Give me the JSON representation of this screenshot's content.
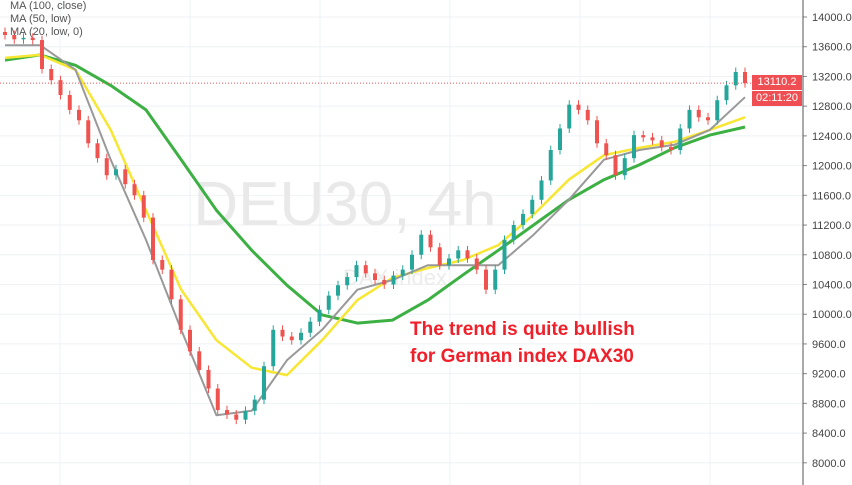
{
  "chart_data": {
    "type": "candlestick",
    "symbol_watermark": "DEU30, 4h",
    "sub_watermark": "DAX index",
    "ylim": [
      8000,
      14200
    ],
    "yticks": [
      8000,
      8400,
      8800,
      9200,
      9600,
      10000,
      10400,
      10800,
      11200,
      11600,
      12000,
      12400,
      12800,
      13200,
      13600,
      14000
    ],
    "ytick_labels": [
      "8000.0",
      "8400.0",
      "8800.0",
      "9200.0",
      "9600.0",
      "10000.0",
      "10400.0",
      "10800.0",
      "11200.0",
      "11600.0",
      "12000.0",
      "12400.0",
      "12800.0",
      "13200.0",
      "13600.0",
      "14000.0"
    ],
    "grid": true,
    "closes": [
      13758,
      13700,
      13720,
      13690,
      13300,
      13150,
      12950,
      12750,
      12610,
      12300,
      12100,
      11870,
      11950,
      11750,
      11600,
      11300,
      10730,
      10600,
      10200,
      9790,
      9500,
      9250,
      9000,
      8710,
      8650,
      8580,
      8700,
      8850,
      9300,
      9790,
      9700,
      9650,
      9750,
      9900,
      10060,
      10250,
      10390,
      10500,
      10660,
      10550,
      10460,
      10400,
      10520,
      10600,
      10800,
      11070,
      10900,
      10660,
      10750,
      10860,
      10750,
      10600,
      10330,
      10600,
      11000,
      11200,
      11350,
      11540,
      11800,
      12210,
      12500,
      12820,
      12750,
      12610,
      12300,
      12140,
      11870,
      12100,
      12410,
      12380,
      12340,
      12250,
      12210,
      12500,
      12750,
      12650,
      12610,
      12880,
      13080,
      13260,
      13110
    ],
    "moving_averages": [
      {
        "name": "MA (100, close)",
        "color": "#3cb043",
        "values": [
          13420,
          13490,
          13350,
          13080,
          12750,
          12080,
          11400,
          10860,
          10390,
          9990,
          9880,
          9920,
          10190,
          10530,
          10860,
          11200,
          11540,
          11810,
          12010,
          12240,
          12410,
          12520
        ]
      },
      {
        "name": "MA (50, low)",
        "color": "#f7e632",
        "values": [
          13450,
          13490,
          13290,
          12480,
          11400,
          10330,
          9650,
          9280,
          9180,
          9650,
          10190,
          10490,
          10620,
          10730,
          10930,
          11340,
          11810,
          12140,
          12240,
          12320,
          12480,
          12650
        ]
      },
      {
        "name": "MA (20, low, 0)",
        "color": "#999999",
        "values": [
          13620,
          13620,
          13290,
          12080,
          11000,
          9790,
          8640,
          8700,
          9380,
          9790,
          10330,
          10460,
          10660,
          10660,
          10660,
          11070,
          11540,
          12080,
          12210,
          12280,
          12480,
          12920
        ]
      }
    ],
    "last_price": "13110.2",
    "countdown": "02:11:20",
    "colors": {
      "up": "#26a69a",
      "down": "#ef5350",
      "price_line": "#ef5350"
    },
    "annotation": [
      "The trend is quite bullish",
      "for German index DAX30"
    ]
  }
}
